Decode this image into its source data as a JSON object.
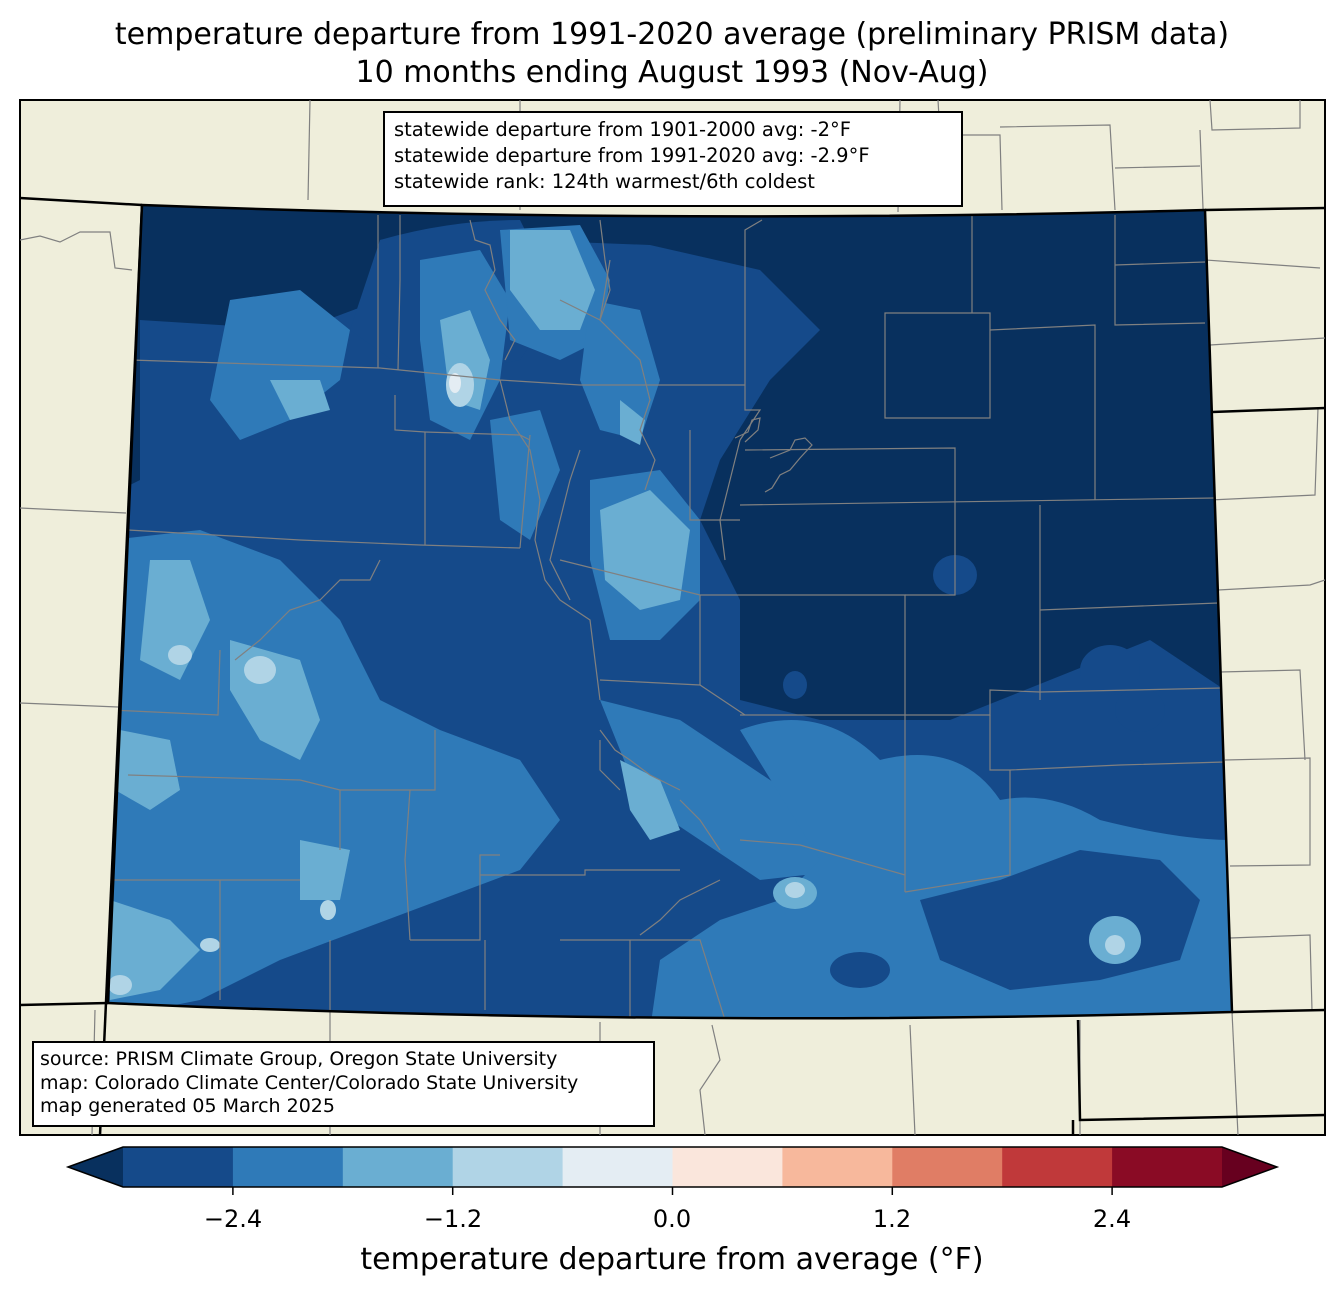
{
  "title": {
    "line1": "temperature departure from 1991-2020 average (preliminary PRISM data)",
    "line2": "10 months ending August 1993 (Nov-Aug)"
  },
  "stats_box": {
    "line1": "statewide departure from 1901-2000 avg: -2°F",
    "line2": "statewide departure from 1991-2020 avg: -2.9°F",
    "line3": "statewide rank: 124th warmest/6th coldest"
  },
  "source_box": {
    "line1": "source: PRISM Climate Group, Oregon State University",
    "line2": "map: Colorado Climate Center/Colorado State University",
    "line3": "map generated 05 March 2025"
  },
  "colorbar": {
    "label": "temperature departure from average (°F)",
    "ticks": [
      "−2.4",
      "−1.2",
      "0.0",
      "1.2",
      "2.4"
    ],
    "bins": [
      -3.0,
      -2.4,
      -1.8,
      -1.2,
      -0.6,
      0.0,
      0.6,
      1.2,
      1.8,
      2.4,
      3.0
    ],
    "colors": [
      "#154a8a",
      "#2f7ab8",
      "#6aaed2",
      "#b0d4e6",
      "#e4edf3",
      "#fae6dc",
      "#f7b89c",
      "#e07d65",
      "#c0393a",
      "#8a0b25"
    ],
    "extend_low_color": "#08305e",
    "extend_high_color": "#67001f"
  },
  "colors": {
    "land": "#efeedb",
    "boundary_gray": "#808080",
    "deepest": "#08305e"
  }
}
